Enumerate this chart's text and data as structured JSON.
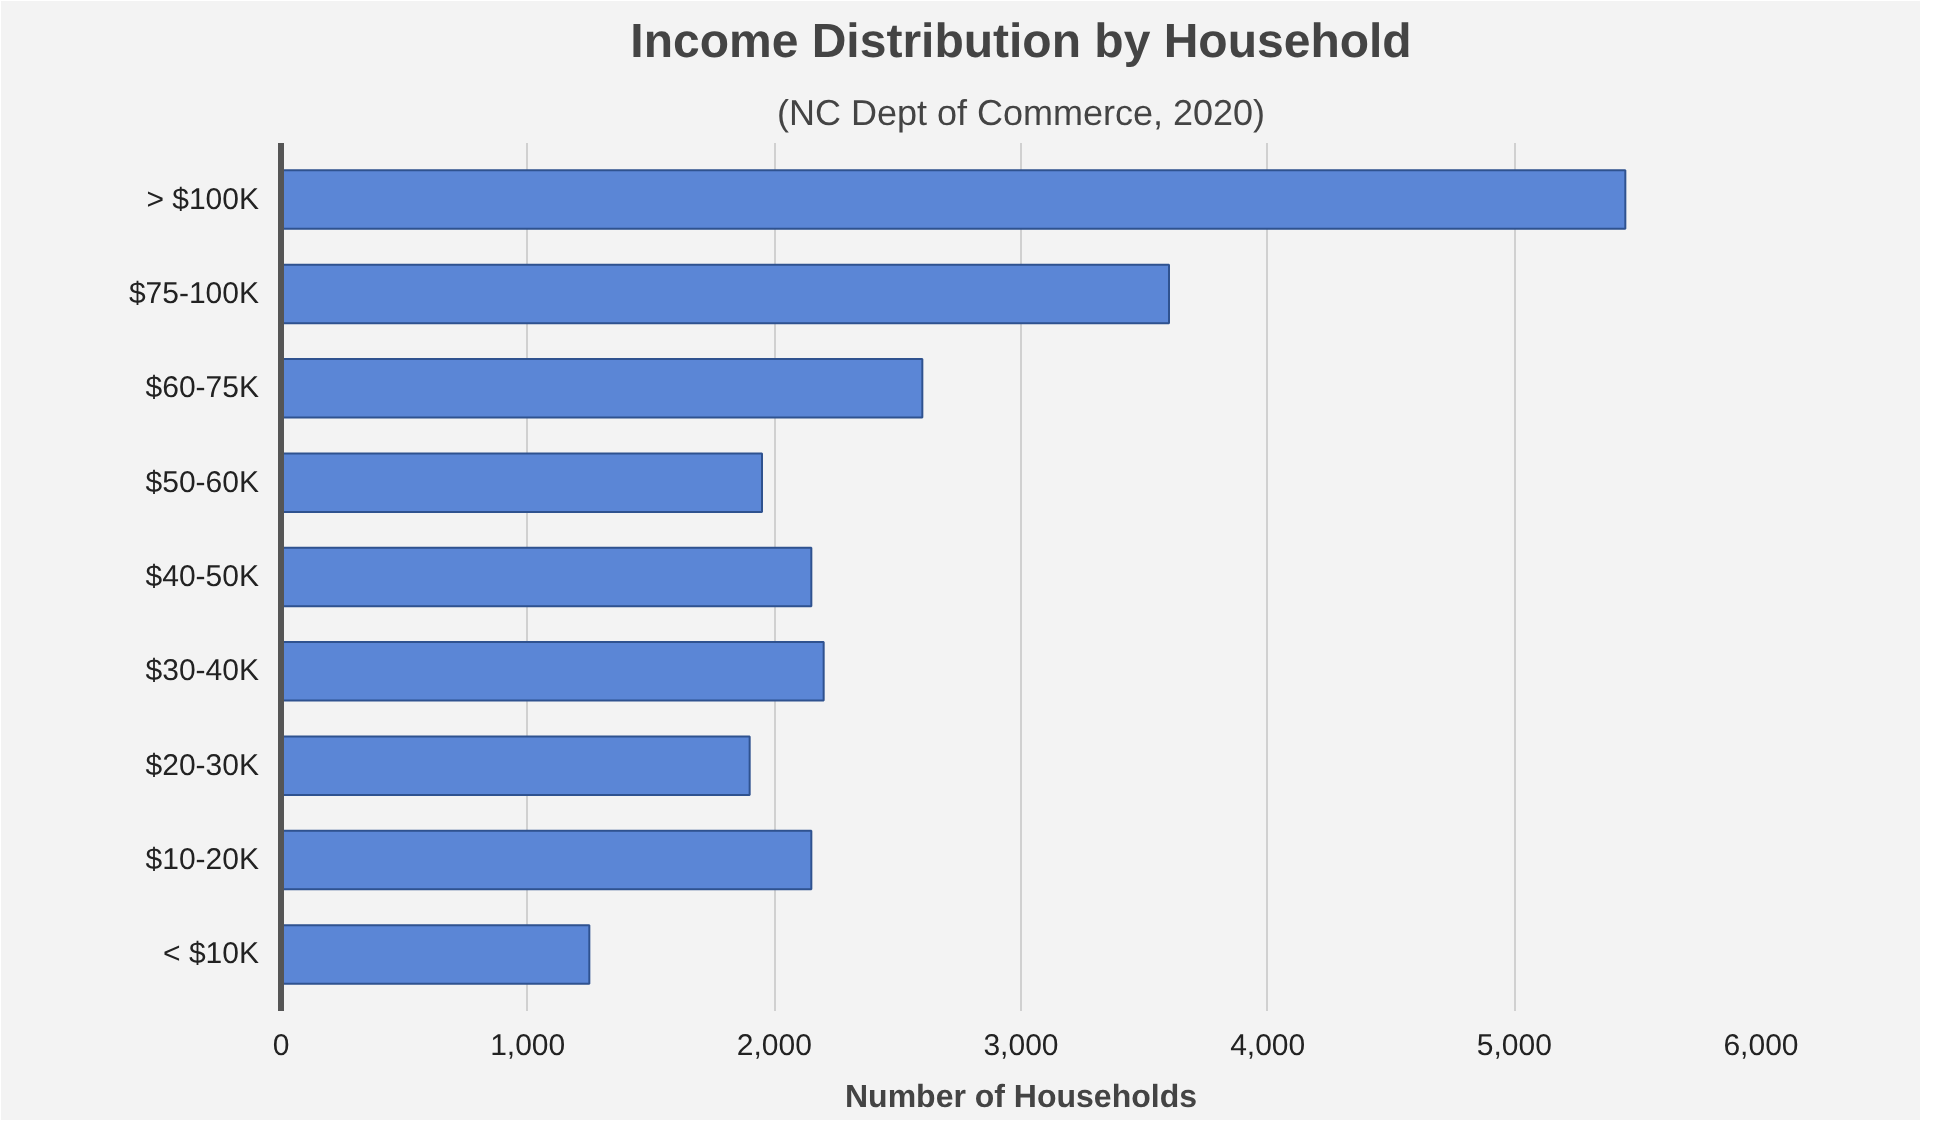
{
  "chart_data": {
    "type": "bar",
    "orientation": "horizontal",
    "title": "Income Distribution by Household",
    "subtitle": "(NC Dept of Commerce, 2020)",
    "xlabel": "Number of Households",
    "categories": [
      "> $100K",
      "$75-100K",
      "$60-75K",
      "$50-60K",
      "$40-50K",
      "$30-40K",
      "$20-30K",
      "$10-20K",
      "< $10K"
    ],
    "values": [
      5450,
      3600,
      2600,
      1950,
      2150,
      2200,
      1900,
      2150,
      1250
    ],
    "color": "#5b86d6",
    "xlim": [
      0,
      6000
    ],
    "xticks": [
      {
        "value": 0,
        "label": "0"
      },
      {
        "value": 1000,
        "label": "1,000"
      },
      {
        "value": 2000,
        "label": "2,000"
      },
      {
        "value": 3000,
        "label": "3,000"
      },
      {
        "value": 4000,
        "label": "4,000"
      },
      {
        "value": 5000,
        "label": "5,000"
      },
      {
        "value": 6000,
        "label": "6,000"
      }
    ],
    "grid": "x"
  }
}
